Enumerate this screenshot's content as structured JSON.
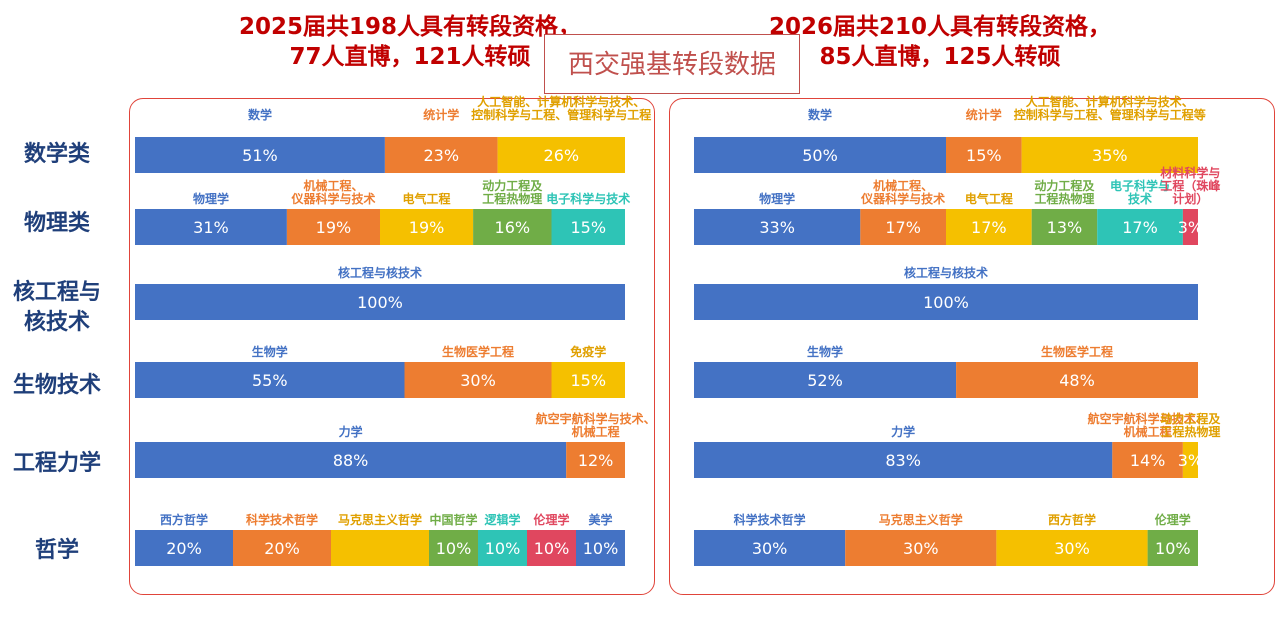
{
  "header": {
    "left_line1": "2025届共198人具有转段资格，",
    "left_line2": "77人直博，121人转硕",
    "right_line1": "2026届共210人具有转段资格，",
    "right_line2": "85人直博，125人转硕",
    "center_title": "西交强基转段数据"
  },
  "row_labels": [
    "数学类",
    "物理类",
    "核工程与\n核技术",
    "生物技术",
    "工程力学",
    "哲学"
  ],
  "colors": {
    "blue": "#4472c4",
    "orange": "#ed7d31",
    "yellow": "#f5c000",
    "green": "#70ad47",
    "teal": "#2ec4b6",
    "red": "#e0475f",
    "panel_border": "#e0443a",
    "title_red": "#c00000"
  },
  "chart_data": [
    {
      "type": "bar",
      "title": "2025届",
      "orientation": "horizontal-stacked-100%",
      "rows": [
        {
          "label": "数学类",
          "segments": [
            {
              "name": "数学",
              "value": 51,
              "display": "51%",
              "color": "blue"
            },
            {
              "name": "统计学",
              "value": 23,
              "display": "23%",
              "color": "orange"
            },
            {
              "name": "人工智能、计算机科学与技术、\n控制科学与工程、管理科学与工程",
              "value": 26,
              "display": "26%",
              "color": "yellow"
            }
          ]
        },
        {
          "label": "物理类",
          "segments": [
            {
              "name": "物理学",
              "value": 31,
              "display": "31%",
              "color": "blue"
            },
            {
              "name": "机械工程、\n仪器科学与技术",
              "value": 19,
              "display": "19%",
              "color": "orange"
            },
            {
              "name": "电气工程",
              "value": 19,
              "display": "19%",
              "color": "yellow"
            },
            {
              "name": "动力工程及\n工程热物理",
              "value": 16,
              "display": "16%",
              "color": "green"
            },
            {
              "name": "电子科学与技术",
              "value": 15,
              "display": "15%",
              "color": "teal"
            }
          ]
        },
        {
          "label": "核工程与核技术",
          "segments": [
            {
              "name": "核工程与核技术",
              "value": 100,
              "display": "100%",
              "color": "blue"
            }
          ]
        },
        {
          "label": "生物技术",
          "segments": [
            {
              "name": "生物学",
              "value": 55,
              "display": "55%",
              "color": "blue"
            },
            {
              "name": "生物医学工程",
              "value": 30,
              "display": "30%",
              "color": "orange"
            },
            {
              "name": "免疫学",
              "value": 15,
              "display": "15%",
              "color": "yellow"
            }
          ]
        },
        {
          "label": "工程力学",
          "segments": [
            {
              "name": "力学",
              "value": 88,
              "display": "88%",
              "color": "blue"
            },
            {
              "name": "航空宇航科学与技术、\n机械工程",
              "value": 12,
              "display": "12%",
              "color": "orange"
            }
          ]
        },
        {
          "label": "哲学",
          "segments": [
            {
              "name": "西方哲学",
              "value": 20,
              "display": "20%",
              "color": "blue"
            },
            {
              "name": "科学技术哲学",
              "value": 20,
              "display": "20%",
              "color": "orange"
            },
            {
              "name": "马克思主义哲学",
              "value": 20,
              "display": "",
              "color": "yellow"
            },
            {
              "name": "中国哲学",
              "value": 10,
              "display": "10%",
              "color": "green"
            },
            {
              "name": "逻辑学",
              "value": 10,
              "display": "10%",
              "color": "teal"
            },
            {
              "name": "伦理学",
              "value": 10,
              "display": "10%",
              "color": "red"
            },
            {
              "name": "美学",
              "value": 10,
              "display": "10%",
              "color": "blue"
            }
          ]
        }
      ]
    },
    {
      "type": "bar",
      "title": "2026届",
      "orientation": "horizontal-stacked-100%",
      "rows": [
        {
          "label": "数学类",
          "segments": [
            {
              "name": "数学",
              "value": 50,
              "display": "50%",
              "color": "blue"
            },
            {
              "name": "统计学",
              "value": 15,
              "display": "15%",
              "color": "orange"
            },
            {
              "name": "人工智能、计算机科学与技术、\n控制科学与工程、管理科学与工程等",
              "value": 35,
              "display": "35%",
              "color": "yellow"
            }
          ]
        },
        {
          "label": "物理类",
          "segments": [
            {
              "name": "物理学",
              "value": 33,
              "display": "33%",
              "color": "blue"
            },
            {
              "name": "机械工程、\n仪器科学与技术",
              "value": 17,
              "display": "17%",
              "color": "orange"
            },
            {
              "name": "电气工程",
              "value": 17,
              "display": "17%",
              "color": "yellow"
            },
            {
              "name": "动力工程及\n工程热物理",
              "value": 13,
              "display": "13%",
              "color": "green"
            },
            {
              "name": "电子科学与\n技术",
              "value": 17,
              "display": "17%",
              "color": "teal"
            },
            {
              "name": "材料科学与\n工程（珠峰\n计划）",
              "value": 3,
              "display": "3%",
              "color": "red"
            }
          ]
        },
        {
          "label": "核工程与核技术",
          "segments": [
            {
              "name": "核工程与核技术",
              "value": 100,
              "display": "100%",
              "color": "blue"
            }
          ]
        },
        {
          "label": "生物技术",
          "segments": [
            {
              "name": "生物学",
              "value": 52,
              "display": "52%",
              "color": "blue"
            },
            {
              "name": "生物医学工程",
              "value": 48,
              "display": "48%",
              "color": "orange"
            }
          ]
        },
        {
          "label": "工程力学",
          "segments": [
            {
              "name": "力学",
              "value": 83,
              "display": "83%",
              "color": "blue"
            },
            {
              "name": "航空宇航科学与技术、\n机械工程",
              "value": 14,
              "display": "14%",
              "color": "orange"
            },
            {
              "name": "动力工程及\n工程热物理",
              "value": 3,
              "display": "3%",
              "color": "yellow"
            }
          ]
        },
        {
          "label": "哲学",
          "segments": [
            {
              "name": "科学技术哲学",
              "value": 30,
              "display": "30%",
              "color": "blue"
            },
            {
              "name": "马克思主义哲学",
              "value": 30,
              "display": "30%",
              "color": "orange"
            },
            {
              "name": "西方哲学",
              "value": 30,
              "display": "30%",
              "color": "yellow"
            },
            {
              "name": "伦理学",
              "value": 10,
              "display": "10%",
              "color": "green"
            }
          ]
        }
      ]
    }
  ]
}
